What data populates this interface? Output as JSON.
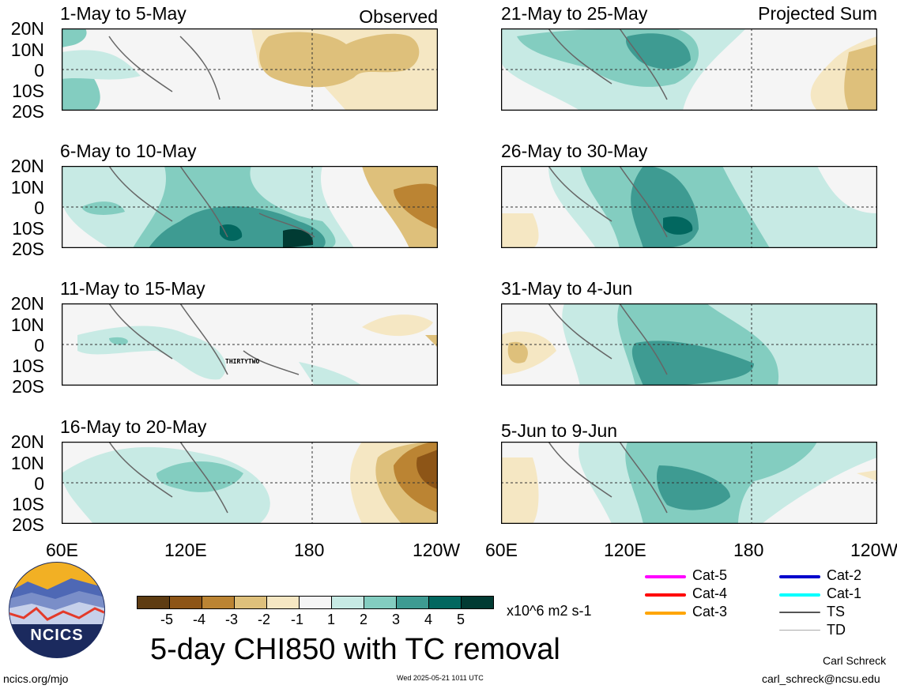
{
  "panels": [
    {
      "title": "1-May to 5-May",
      "tag": "Observed"
    },
    {
      "title": "6-May to 10-May",
      "tag": ""
    },
    {
      "title": "11-May to 15-May",
      "tag": ""
    },
    {
      "title": "16-May to 20-May",
      "tag": ""
    },
    {
      "title": "21-May to 25-May",
      "tag": "Projected Sum"
    },
    {
      "title": "26-May to 30-May",
      "tag": ""
    },
    {
      "title": "31-May to 4-Jun",
      "tag": ""
    },
    {
      "title": "5-Jun to 9-Jun",
      "tag": ""
    }
  ],
  "lat_labels": [
    "20N",
    "10N",
    "0",
    "10S",
    "20S"
  ],
  "lon_labels": [
    "60E",
    "120E",
    "180",
    "120W"
  ],
  "storm_label": "THIRTYTWO",
  "colorbar": {
    "colors": [
      "#5e3c12",
      "#8d5517",
      "#bb8433",
      "#dec07b",
      "#f5e7c3",
      "#f5f5f5",
      "#c7eae4",
      "#83cdc0",
      "#3e9b92",
      "#02675f",
      "#013b33"
    ],
    "labels": [
      "-5",
      "-4",
      "-3",
      "-2",
      "-1",
      "1",
      "2",
      "3",
      "4",
      "5"
    ],
    "units": "x10^6 m2 s-1"
  },
  "main_title": "5-day CHI850 with TC removal",
  "logo_text": "NCICS",
  "legend": [
    {
      "label": "Cat-5",
      "color": "#ff00ff"
    },
    {
      "label": "Cat-4",
      "color": "#ff0000"
    },
    {
      "label": "Cat-3",
      "color": "#ffa500"
    },
    {
      "label": "Cat-2",
      "color": "#0000cc"
    },
    {
      "label": "Cat-1",
      "color": "#00ffff"
    },
    {
      "label": "TS",
      "color": "#555555"
    },
    {
      "label": "TD",
      "color": "#aaaaaa"
    }
  ],
  "footer": {
    "left": "ncics.org/mjo",
    "center": "Wed 2025-05-21 1011 UTC",
    "author": "Carl Schreck",
    "email": "carl_schreck@ncsu.edu"
  }
}
